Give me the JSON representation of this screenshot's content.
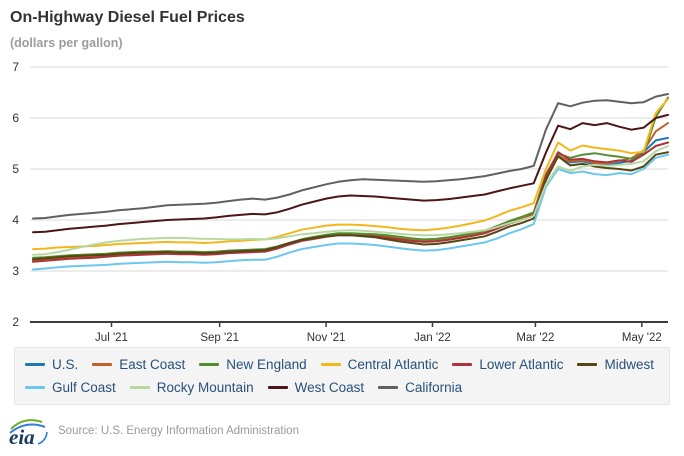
{
  "header": {
    "title": "On-Highway Diesel Fuel Prices",
    "subtitle": "(dollars per gallon)"
  },
  "footer": {
    "logo_text": "eia",
    "source": "Source: U.S. Energy Information Administration"
  },
  "colors": {
    "grid": "#d9d9d9",
    "axis": "#3c3c3c",
    "title_text": "#333333",
    "muted_text": "#9c9c9c",
    "legend_bg": "#f4f4f4",
    "legend_text": "#27517a",
    "logo_navy": "#173a5c",
    "logo_green": "#6ab023",
    "logo_blue": "#2f7ed8"
  },
  "chart_data": {
    "type": "line",
    "title": "On-Highway Diesel Fuel Prices",
    "xlabel": "",
    "ylabel": "dollars per gallon",
    "ylim": [
      2,
      7
    ],
    "y_ticks": [
      7,
      6,
      5,
      4,
      3,
      2
    ],
    "grid": true,
    "legend_position": "bottom",
    "x_ticks": [
      {
        "date": "2021-07-01",
        "label": "Jul '21"
      },
      {
        "date": "2021-09-01",
        "label": "Sep '21"
      },
      {
        "date": "2021-11-01",
        "label": "Nov '21"
      },
      {
        "date": "2022-01-01",
        "label": "Jan '22"
      },
      {
        "date": "2022-03-01",
        "label": "Mar '22"
      },
      {
        "date": "2022-05-01",
        "label": "May '22"
      }
    ],
    "x": [
      "2021-05-17",
      "2021-05-24",
      "2021-05-31",
      "2021-06-07",
      "2021-06-14",
      "2021-06-21",
      "2021-06-28",
      "2021-07-05",
      "2021-07-12",
      "2021-07-19",
      "2021-07-26",
      "2021-08-02",
      "2021-08-09",
      "2021-08-16",
      "2021-08-23",
      "2021-08-30",
      "2021-09-06",
      "2021-09-13",
      "2021-09-20",
      "2021-09-27",
      "2021-10-04",
      "2021-10-11",
      "2021-10-18",
      "2021-10-25",
      "2021-11-01",
      "2021-11-08",
      "2021-11-15",
      "2021-11-22",
      "2021-11-29",
      "2021-12-06",
      "2021-12-13",
      "2021-12-20",
      "2021-12-27",
      "2022-01-03",
      "2022-01-10",
      "2022-01-17",
      "2022-01-24",
      "2022-01-31",
      "2022-02-07",
      "2022-02-14",
      "2022-02-21",
      "2022-02-28",
      "2022-03-07",
      "2022-03-14",
      "2022-03-21",
      "2022-03-28",
      "2022-04-04",
      "2022-04-11",
      "2022-04-18",
      "2022-04-25",
      "2022-05-02",
      "2022-05-09",
      "2022-05-16"
    ],
    "series": [
      {
        "name": "U.S.",
        "color": "#1e78b4",
        "values": [
          3.21,
          3.23,
          3.25,
          3.27,
          3.28,
          3.29,
          3.31,
          3.33,
          3.34,
          3.35,
          3.36,
          3.37,
          3.36,
          3.36,
          3.35,
          3.36,
          3.38,
          3.39,
          3.4,
          3.41,
          3.47,
          3.55,
          3.62,
          3.66,
          3.7,
          3.73,
          3.73,
          3.72,
          3.71,
          3.68,
          3.65,
          3.62,
          3.6,
          3.61,
          3.64,
          3.68,
          3.72,
          3.76,
          3.84,
          3.93,
          4.0,
          4.1,
          4.85,
          5.25,
          5.13,
          5.15,
          5.09,
          5.07,
          5.12,
          5.16,
          5.33,
          5.56,
          5.61
        ]
      },
      {
        "name": "East Coast",
        "color": "#c1622b",
        "values": [
          3.2,
          3.22,
          3.24,
          3.26,
          3.27,
          3.28,
          3.3,
          3.32,
          3.33,
          3.34,
          3.35,
          3.36,
          3.35,
          3.35,
          3.34,
          3.35,
          3.37,
          3.38,
          3.39,
          3.4,
          3.46,
          3.54,
          3.61,
          3.65,
          3.69,
          3.72,
          3.72,
          3.71,
          3.7,
          3.67,
          3.64,
          3.61,
          3.59,
          3.6,
          3.63,
          3.67,
          3.71,
          3.76,
          3.85,
          3.95,
          4.02,
          4.12,
          4.87,
          5.26,
          5.15,
          5.17,
          5.12,
          5.11,
          5.16,
          5.21,
          5.36,
          5.74,
          5.9
        ]
      },
      {
        "name": "New England",
        "color": "#538f2f",
        "values": [
          3.26,
          3.27,
          3.29,
          3.31,
          3.32,
          3.33,
          3.34,
          3.36,
          3.37,
          3.38,
          3.38,
          3.39,
          3.38,
          3.38,
          3.37,
          3.38,
          3.4,
          3.41,
          3.42,
          3.43,
          3.48,
          3.55,
          3.62,
          3.67,
          3.71,
          3.74,
          3.74,
          3.73,
          3.72,
          3.7,
          3.67,
          3.64,
          3.62,
          3.63,
          3.66,
          3.7,
          3.74,
          3.79,
          3.88,
          3.98,
          4.06,
          4.15,
          4.9,
          5.3,
          5.22,
          5.28,
          5.31,
          5.27,
          5.24,
          5.2,
          5.28,
          6.02,
          6.4
        ]
      },
      {
        "name": "Central Atlantic",
        "color": "#f3b71b",
        "values": [
          3.43,
          3.44,
          3.46,
          3.47,
          3.48,
          3.49,
          3.51,
          3.53,
          3.54,
          3.55,
          3.56,
          3.57,
          3.56,
          3.56,
          3.55,
          3.56,
          3.58,
          3.59,
          3.61,
          3.62,
          3.67,
          3.74,
          3.81,
          3.85,
          3.89,
          3.91,
          3.91,
          3.9,
          3.88,
          3.86,
          3.83,
          3.81,
          3.8,
          3.82,
          3.85,
          3.89,
          3.94,
          3.99,
          4.08,
          4.18,
          4.25,
          4.33,
          5.0,
          5.52,
          5.36,
          5.46,
          5.42,
          5.39,
          5.36,
          5.31,
          5.34,
          6.1,
          6.37
        ]
      },
      {
        "name": "Lower Atlantic",
        "color": "#a93439",
        "values": [
          3.18,
          3.2,
          3.22,
          3.24,
          3.25,
          3.26,
          3.28,
          3.3,
          3.31,
          3.32,
          3.33,
          3.34,
          3.33,
          3.33,
          3.32,
          3.33,
          3.35,
          3.36,
          3.37,
          3.38,
          3.44,
          3.52,
          3.59,
          3.63,
          3.67,
          3.7,
          3.7,
          3.69,
          3.68,
          3.65,
          3.62,
          3.59,
          3.57,
          3.58,
          3.61,
          3.65,
          3.69,
          3.74,
          3.83,
          3.93,
          4.0,
          4.1,
          4.86,
          5.33,
          5.18,
          5.2,
          5.15,
          5.13,
          5.17,
          5.14,
          5.28,
          5.45,
          5.52
        ]
      },
      {
        "name": "Midwest",
        "color": "#544712",
        "values": [
          3.23,
          3.25,
          3.27,
          3.29,
          3.3,
          3.31,
          3.32,
          3.34,
          3.35,
          3.36,
          3.37,
          3.37,
          3.36,
          3.36,
          3.35,
          3.36,
          3.38,
          3.39,
          3.4,
          3.41,
          3.47,
          3.55,
          3.61,
          3.65,
          3.68,
          3.7,
          3.7,
          3.68,
          3.66,
          3.62,
          3.58,
          3.55,
          3.52,
          3.53,
          3.56,
          3.6,
          3.64,
          3.68,
          3.77,
          3.87,
          3.94,
          4.03,
          4.78,
          5.25,
          5.07,
          5.1,
          5.05,
          5.02,
          5.0,
          4.97,
          5.05,
          5.28,
          5.33
        ]
      },
      {
        "name": "Gulf Coast",
        "color": "#6cc7f0",
        "values": [
          3.03,
          3.05,
          3.07,
          3.09,
          3.1,
          3.11,
          3.12,
          3.14,
          3.15,
          3.16,
          3.17,
          3.18,
          3.17,
          3.17,
          3.16,
          3.17,
          3.19,
          3.21,
          3.22,
          3.22,
          3.28,
          3.36,
          3.43,
          3.47,
          3.51,
          3.54,
          3.54,
          3.53,
          3.51,
          3.48,
          3.45,
          3.42,
          3.4,
          3.41,
          3.44,
          3.48,
          3.52,
          3.56,
          3.64,
          3.74,
          3.82,
          3.92,
          4.65,
          5.0,
          4.92,
          4.95,
          4.9,
          4.88,
          4.92,
          4.9,
          5.0,
          5.22,
          5.28
        ]
      },
      {
        "name": "Rocky Mountain",
        "color": "#b7d8a2",
        "values": [
          3.32,
          3.33,
          3.37,
          3.42,
          3.47,
          3.52,
          3.56,
          3.59,
          3.61,
          3.63,
          3.64,
          3.65,
          3.65,
          3.64,
          3.63,
          3.63,
          3.62,
          3.62,
          3.63,
          3.62,
          3.64,
          3.68,
          3.72,
          3.74,
          3.77,
          3.79,
          3.8,
          3.79,
          3.77,
          3.75,
          3.73,
          3.71,
          3.7,
          3.7,
          3.72,
          3.74,
          3.77,
          3.8,
          3.86,
          3.94,
          4.0,
          4.08,
          4.7,
          5.05,
          4.96,
          5.05,
          5.08,
          5.06,
          5.08,
          5.1,
          5.15,
          5.35,
          5.45
        ]
      },
      {
        "name": "West Coast",
        "color": "#4c1517",
        "values": [
          3.76,
          3.77,
          3.8,
          3.83,
          3.85,
          3.87,
          3.89,
          3.92,
          3.94,
          3.96,
          3.98,
          4.0,
          4.01,
          4.02,
          4.03,
          4.05,
          4.08,
          4.1,
          4.12,
          4.11,
          4.15,
          4.22,
          4.3,
          4.36,
          4.42,
          4.46,
          4.48,
          4.47,
          4.46,
          4.44,
          4.42,
          4.4,
          4.38,
          4.39,
          4.41,
          4.44,
          4.47,
          4.5,
          4.56,
          4.62,
          4.67,
          4.72,
          5.32,
          5.85,
          5.78,
          5.9,
          5.86,
          5.9,
          5.83,
          5.77,
          5.81,
          6.0,
          6.06
        ]
      },
      {
        "name": "California",
        "color": "#606060",
        "values": [
          4.03,
          4.04,
          4.07,
          4.1,
          4.12,
          4.14,
          4.16,
          4.19,
          4.21,
          4.23,
          4.26,
          4.29,
          4.3,
          4.31,
          4.32,
          4.34,
          4.37,
          4.4,
          4.42,
          4.4,
          4.44,
          4.5,
          4.58,
          4.64,
          4.7,
          4.75,
          4.78,
          4.8,
          4.79,
          4.78,
          4.77,
          4.76,
          4.75,
          4.76,
          4.78,
          4.8,
          4.83,
          4.86,
          4.91,
          4.96,
          5.0,
          5.06,
          5.77,
          6.29,
          6.23,
          6.3,
          6.34,
          6.35,
          6.32,
          6.29,
          6.31,
          6.42,
          6.47
        ]
      }
    ]
  }
}
